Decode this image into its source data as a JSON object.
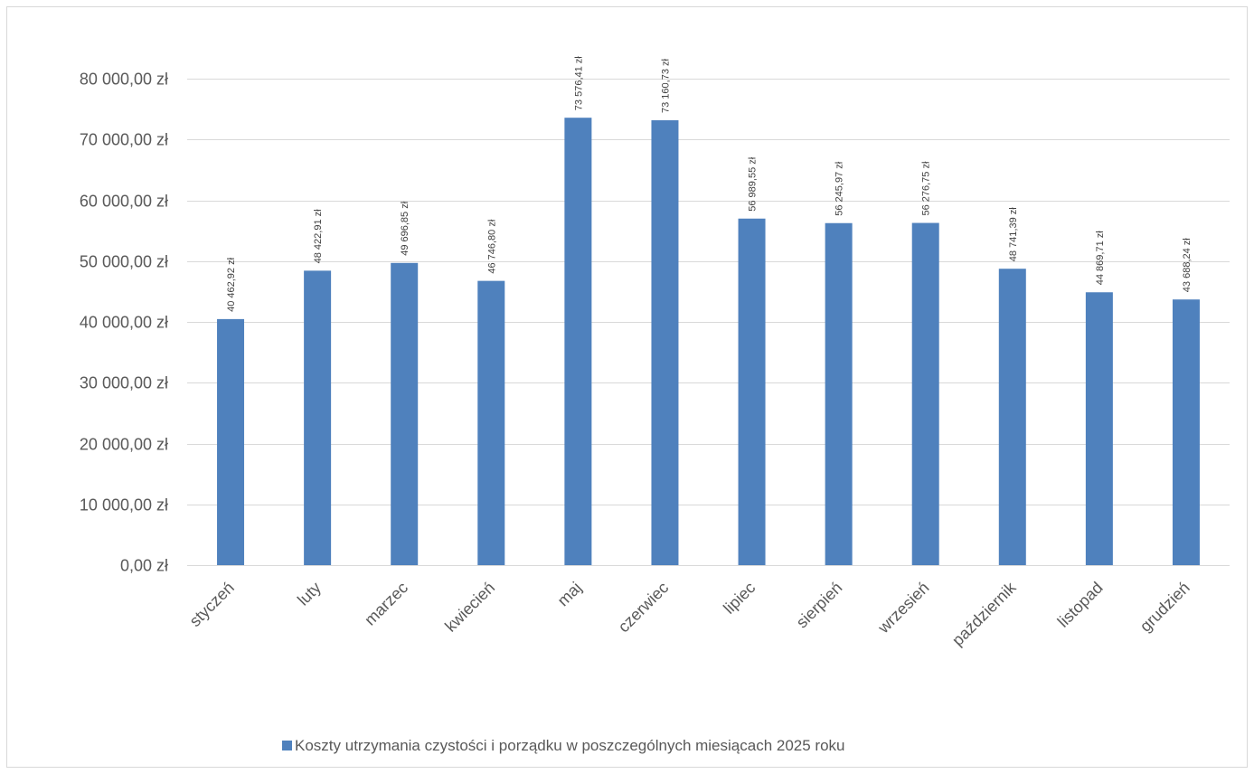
{
  "chart_data": {
    "type": "bar",
    "categories": [
      "styczeń",
      "luty",
      "marzec",
      "kwiecień",
      "maj",
      "czerwiec",
      "lipiec",
      "sierpień",
      "wrzesień",
      "październik",
      "listopad",
      "grudzień"
    ],
    "series": [
      {
        "name": "Koszty utrzymania czystości i porządku w poszczególnych miesiącach 2025 roku",
        "values": [
          40462.92,
          48422.91,
          49696.85,
          46746.8,
          73576.41,
          73160.73,
          56989.55,
          56245.97,
          56276.75,
          48741.39,
          44869.71,
          43688.24
        ],
        "labels": [
          "40 462,92 zł",
          "48 422,91 zł",
          "49 696,85 zł",
          "46 746,80 zł",
          "73 576,41 zł",
          "73 160,73 zł",
          "56 989,55 zł",
          "56 245,97 zł",
          "56 276,75 zł",
          "48 741,39 zł",
          "44 869,71 zł",
          "43 688,24 zł"
        ],
        "color": "#4f81bd"
      }
    ],
    "ylim": [
      0,
      80000
    ],
    "yticks": [
      0,
      10000,
      20000,
      30000,
      40000,
      50000,
      60000,
      70000,
      80000
    ],
    "ytick_labels": [
      "0,00 zł",
      "10 000,00 zł",
      "20 000,00 zł",
      "30 000,00 zł",
      "40 000,00 zł",
      "50 000,00 zł",
      "60 000,00 zł",
      "70 000,00 zł",
      "80 000,00 zł"
    ],
    "grid": true,
    "legend_position": "bottom",
    "gridline_color": "#d9d9d9"
  }
}
